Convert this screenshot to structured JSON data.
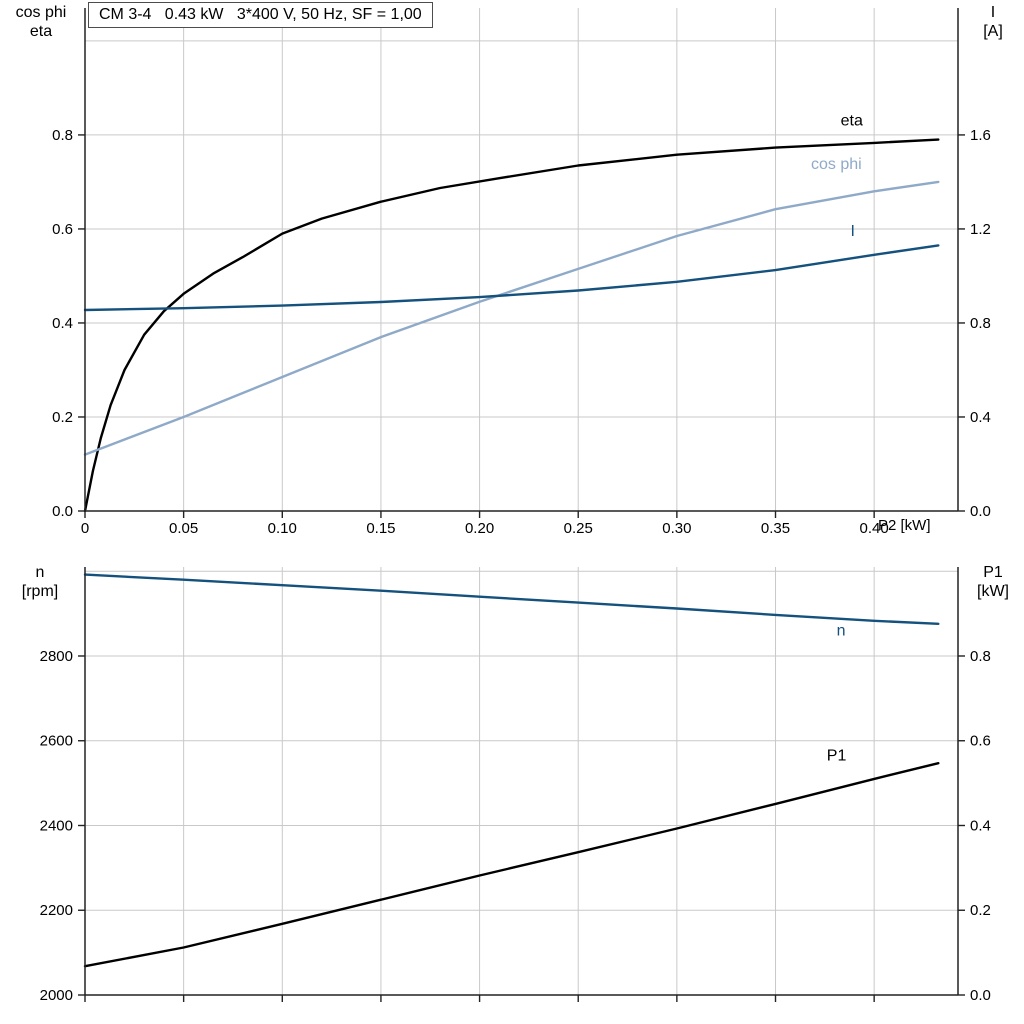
{
  "colors": {
    "black": "#000000",
    "light_blue": "#8faac8",
    "dark_blue": "#15517d",
    "grid": "#c9c9c9",
    "axis": "#222222"
  },
  "chart_data": [
    {
      "type": "line",
      "title": "CM 3-4   0.43 kW   3*400 V, 50 Hz, SF = 1,00",
      "xlabel": "P2 [kW]",
      "xlim": [
        0,
        0.4425
      ],
      "x_ticks": [
        {
          "v": 0,
          "label": "0"
        },
        {
          "v": 0.05,
          "label": "0.05"
        },
        {
          "v": 0.1,
          "label": "0.10"
        },
        {
          "v": 0.15,
          "label": "0.15"
        },
        {
          "v": 0.2,
          "label": "0.20"
        },
        {
          "v": 0.25,
          "label": "0.25"
        },
        {
          "v": 0.3,
          "label": "0.30"
        },
        {
          "v": 0.35,
          "label": "0.35"
        },
        {
          "v": 0.4,
          "label": "0.40"
        }
      ],
      "left_axis": {
        "title": [
          "cos phi",
          "eta"
        ],
        "lim": [
          0,
          1.07
        ],
        "ticks": [
          {
            "v": 0.0,
            "label": "0.0"
          },
          {
            "v": 0.2,
            "label": "0.2"
          },
          {
            "v": 0.4,
            "label": "0.4"
          },
          {
            "v": 0.6,
            "label": "0.6"
          },
          {
            "v": 0.8,
            "label": "0.8"
          },
          {
            "v": 1.0,
            "label": ""
          }
        ]
      },
      "right_axis": {
        "title": [
          "I",
          "[A]"
        ],
        "lim": [
          0,
          2.14
        ],
        "ticks": [
          {
            "v": 0.0,
            "label": "0.0"
          },
          {
            "v": 0.4,
            "label": "0.4"
          },
          {
            "v": 0.8,
            "label": "0.8"
          },
          {
            "v": 1.2,
            "label": "1.2"
          },
          {
            "v": 1.6,
            "label": "1.6"
          }
        ]
      },
      "series": [
        {
          "name": "eta",
          "axis": "left",
          "color": "#000000",
          "x": [
            0,
            0.004,
            0.008,
            0.013,
            0.02,
            0.03,
            0.04,
            0.05,
            0.065,
            0.08,
            0.1,
            0.12,
            0.15,
            0.18,
            0.21,
            0.25,
            0.3,
            0.35,
            0.4,
            0.4325
          ],
          "y": [
            0,
            0.085,
            0.155,
            0.225,
            0.3,
            0.375,
            0.425,
            0.462,
            0.505,
            0.54,
            0.59,
            0.622,
            0.658,
            0.687,
            0.708,
            0.735,
            0.758,
            0.773,
            0.783,
            0.79
          ],
          "label": {
            "text": "eta",
            "x": 0.383,
            "v": 0.82
          }
        },
        {
          "name": "cos phi",
          "axis": "left",
          "color": "#8faac8",
          "x": [
            0,
            0.05,
            0.1,
            0.15,
            0.2,
            0.25,
            0.3,
            0.35,
            0.4,
            0.4325
          ],
          "y": [
            0.12,
            0.2,
            0.285,
            0.37,
            0.445,
            0.515,
            0.585,
            0.642,
            0.68,
            0.7
          ],
          "label": {
            "text": "cos phi",
            "x": 0.368,
            "v": 0.728
          }
        },
        {
          "name": "I",
          "axis": "right",
          "color": "#15517d",
          "x": [
            0,
            0.05,
            0.1,
            0.15,
            0.2,
            0.25,
            0.3,
            0.35,
            0.4,
            0.4325
          ],
          "y": [
            0.855,
            0.863,
            0.874,
            0.889,
            0.91,
            0.938,
            0.975,
            1.025,
            1.09,
            1.13
          ],
          "label": {
            "text": "I",
            "x": 0.388,
            "v": 1.17
          }
        }
      ]
    },
    {
      "type": "line",
      "title": "",
      "xlabel": "",
      "xlim": [
        0,
        0.4425
      ],
      "x_ticks": [
        {
          "v": 0,
          "label": ""
        },
        {
          "v": 0.05,
          "label": ""
        },
        {
          "v": 0.1,
          "label": ""
        },
        {
          "v": 0.15,
          "label": ""
        },
        {
          "v": 0.2,
          "label": ""
        },
        {
          "v": 0.25,
          "label": ""
        },
        {
          "v": 0.3,
          "label": ""
        },
        {
          "v": 0.35,
          "label": ""
        },
        {
          "v": 0.4,
          "label": ""
        }
      ],
      "left_axis": {
        "title": [
          "n",
          "[rpm]"
        ],
        "lim": [
          2000,
          3010
        ],
        "ticks": [
          {
            "v": 2000,
            "label": "2000"
          },
          {
            "v": 2200,
            "label": "2200"
          },
          {
            "v": 2400,
            "label": "2400"
          },
          {
            "v": 2600,
            "label": "2600"
          },
          {
            "v": 2800,
            "label": "2800"
          },
          {
            "v": 3000,
            "label": ""
          }
        ]
      },
      "right_axis": {
        "title": [
          "P1",
          "[kW]"
        ],
        "lim": [
          0,
          1.01
        ],
        "ticks": [
          {
            "v": 0.0,
            "label": "0.0"
          },
          {
            "v": 0.2,
            "label": "0.2"
          },
          {
            "v": 0.4,
            "label": "0.4"
          },
          {
            "v": 0.6,
            "label": "0.6"
          },
          {
            "v": 0.8,
            "label": "0.8"
          }
        ]
      },
      "series": [
        {
          "name": "n",
          "axis": "left",
          "color": "#15517d",
          "x": [
            0,
            0.05,
            0.1,
            0.15,
            0.2,
            0.25,
            0.3,
            0.35,
            0.4,
            0.4325
          ],
          "y": [
            2992,
            2980,
            2967,
            2954,
            2940,
            2926,
            2912,
            2897,
            2883,
            2876
          ],
          "label": {
            "text": "n",
            "x": 0.381,
            "v": 2848
          }
        },
        {
          "name": "P1",
          "axis": "right",
          "color": "#000000",
          "x": [
            0,
            0.05,
            0.1,
            0.15,
            0.2,
            0.25,
            0.3,
            0.35,
            0.4,
            0.4325
          ],
          "y": [
            0.068,
            0.112,
            0.168,
            0.225,
            0.282,
            0.337,
            0.393,
            0.451,
            0.51,
            0.547
          ],
          "label": {
            "text": "P1",
            "x": 0.376,
            "v": 0.553
          }
        }
      ]
    }
  ]
}
